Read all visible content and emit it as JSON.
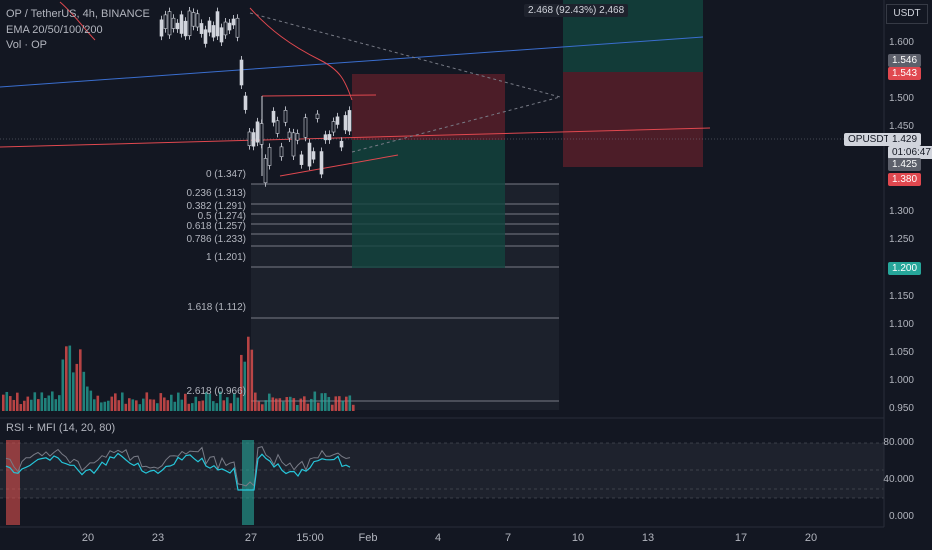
{
  "header": {
    "symbol_title": "OP / TetherUS, 4h, BINANCE",
    "indicator_ema": "EMA 20/50/100/200",
    "indicator_vol": "Vol · OP",
    "rsi_title": "RSI + MFI (14, 20, 80)"
  },
  "currency_button": "USDT",
  "measure_label": "2.468 (92.43%) 2,468",
  "price_axis": {
    "ticks": [
      "1.600",
      "1.500",
      "1.450",
      "1.300",
      "1.250",
      "1.150",
      "1.100",
      "1.050",
      "1.000",
      "0.950"
    ],
    "tag_1546": "1.546",
    "tag_1543": "1.543",
    "symbol_tag": "OPUSDT",
    "current_price": "1.429",
    "countdown": "01:06:47",
    "tag_1425": "1.425",
    "tag_1380": "1.380",
    "tag_1200": "1.200"
  },
  "rsi_axis": {
    "ticks": [
      "80.000",
      "40.000",
      "0.000"
    ]
  },
  "time_axis": {
    "ticks": [
      "20",
      "23",
      "27",
      "15:00",
      "Feb",
      "4",
      "7",
      "10",
      "13",
      "17",
      "20"
    ]
  },
  "fib_levels": [
    {
      "label": "0 (1.347)"
    },
    {
      "label": "0.236 (1.313)"
    },
    {
      "label": "0.382 (1.291)"
    },
    {
      "label": "0.5 (1.274)"
    },
    {
      "label": "0.618 (1.257)"
    },
    {
      "label": "0.786 (1.233)"
    },
    {
      "label": "1 (1.201)"
    },
    {
      "label": "1.618 (1.112)"
    },
    {
      "label": "2.618 (0.966)"
    }
  ],
  "colors": {
    "background": "#131722",
    "up": "#b2b5be",
    "down": "#d1d4dc",
    "vol_up": "#26a69a",
    "vol_down": "#ef5350",
    "loss_zone": "#5b1f2a",
    "profit_zone": "#13453f",
    "trend_blue": "#3a6ecf",
    "trend_red": "#e0484f",
    "rsi_line": "#26c6da",
    "mfi_line": "#787b86"
  }
}
